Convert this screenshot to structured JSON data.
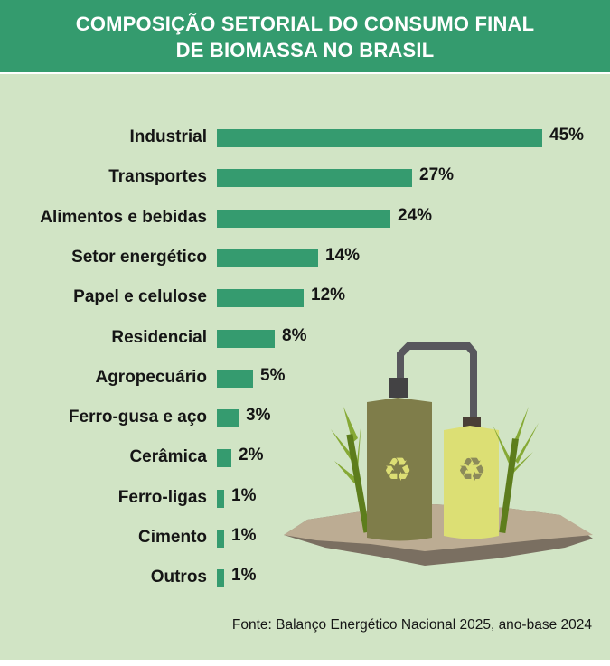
{
  "header": {
    "title_line1": "COMPOSIÇÃO SETORIAL DO CONSUMO FINAL",
    "title_line2": "DE BIOMASSA NO BRASIL"
  },
  "colors": {
    "header_bg": "#349b6e",
    "panel_bg": "#d1e4c5",
    "bar": "#359b6f"
  },
  "rows": [
    {
      "label": "Industrial",
      "value": "45%"
    },
    {
      "label": "Transportes",
      "value": "27%"
    },
    {
      "label": "Alimentos e bebidas",
      "value": "24%"
    },
    {
      "label": "Setor energético",
      "value": "14%"
    },
    {
      "label": "Papel e celulose",
      "value": "12%"
    },
    {
      "label": "Residencial",
      "value": "8%"
    },
    {
      "label": "Agropecuário",
      "value": "5%"
    },
    {
      "label": "Ferro-gusa e aço",
      "value": "3%"
    },
    {
      "label": "Cerâmica",
      "value": "2%"
    },
    {
      "label": "Ferro-ligas",
      "value": "1%"
    },
    {
      "label": "Cimento",
      "value": "1%"
    },
    {
      "label": "Outros",
      "value": "1%"
    }
  ],
  "source": "Fonte: Balanço Energético Nacional 2025, ano-base 2024",
  "chart_data": {
    "type": "bar",
    "orientation": "horizontal",
    "title": "COMPOSIÇÃO SETORIAL DO CONSUMO FINAL DE BIOMASSA NO BRASIL",
    "categories": [
      "Industrial",
      "Transportes",
      "Alimentos e bebidas",
      "Setor energético",
      "Papel e celulose",
      "Residencial",
      "Agropecuário",
      "Ferro-gusa e aço",
      "Cerâmica",
      "Ferro-ligas",
      "Cimento",
      "Outros"
    ],
    "values": [
      45,
      27,
      24,
      14,
      12,
      8,
      5,
      3,
      2,
      1,
      1,
      1
    ],
    "unit": "%",
    "xlabel": "",
    "ylabel": "",
    "grid": false,
    "legend": null,
    "annotation": "Fonte: Balanço Energético Nacional 2025, ano-base 2024"
  }
}
